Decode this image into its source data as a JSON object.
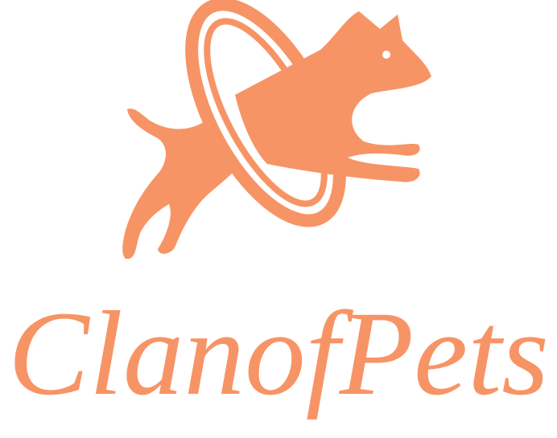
{
  "logo": {
    "text": "ClanofPets"
  }
}
